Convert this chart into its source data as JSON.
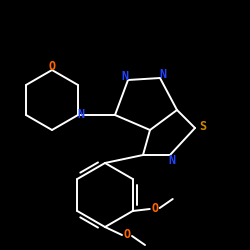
{
  "background_color": "#000000",
  "bond_color": "#FFFFFF",
  "label_N": "#2244FF",
  "label_S": "#CC8800",
  "label_O": "#FF6600",
  "figsize": [
    2.5,
    2.5
  ],
  "dpi": 100,
  "xlim": [
    0,
    250
  ],
  "ylim": [
    0,
    250
  ]
}
